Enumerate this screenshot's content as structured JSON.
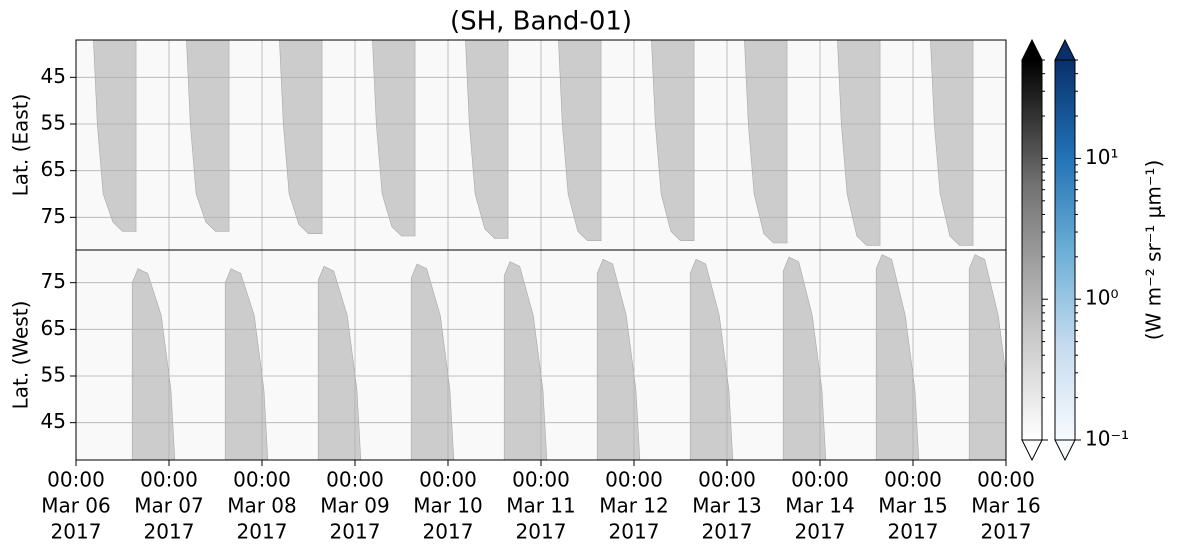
{
  "chart_data": {
    "type": "heatmap",
    "title": "(SH, Band-01)",
    "xlim": [
      0,
      240
    ],
    "xticks": [
      {
        "value": 0,
        "label": [
          "00:00",
          "Mar 06",
          "2017"
        ]
      },
      {
        "value": 24,
        "label": [
          "00:00",
          "Mar 07",
          "2017"
        ]
      },
      {
        "value": 48,
        "label": [
          "00:00",
          "Mar 08",
          "2017"
        ]
      },
      {
        "value": 72,
        "label": [
          "00:00",
          "Mar 09",
          "2017"
        ]
      },
      {
        "value": 96,
        "label": [
          "00:00",
          "Mar 10",
          "2017"
        ]
      },
      {
        "value": 120,
        "label": [
          "00:00",
          "Mar 11",
          "2017"
        ]
      },
      {
        "value": 144,
        "label": [
          "00:00",
          "Mar 12",
          "2017"
        ]
      },
      {
        "value": 168,
        "label": [
          "00:00",
          "Mar 13",
          "2017"
        ]
      },
      {
        "value": 192,
        "label": [
          "00:00",
          "Mar 14",
          "2017"
        ]
      },
      {
        "value": 216,
        "label": [
          "00:00",
          "Mar 15",
          "2017"
        ]
      },
      {
        "value": 240,
        "label": [
          "00:00",
          "Mar 16",
          "2017"
        ]
      }
    ],
    "grid": true,
    "panels": [
      {
        "ylabel": "Lat. (East)",
        "ylim": [
          82,
          37
        ],
        "yticks": [
          45,
          55,
          65,
          75
        ],
        "background": 0.12,
        "swaths": [
          {
            "value": 0.5,
            "x": [
              4.5,
              15.5,
              15.5,
              12,
              9.5,
              7,
              5.5
            ],
            "y": [
              37,
              37,
              78,
              78,
              76,
              70,
              55
            ]
          },
          {
            "value": 0.5,
            "x": [
              28.5,
              39.5,
              39.5,
              36,
              33.5,
              31,
              29.5
            ],
            "y": [
              37,
              37,
              78,
              78,
              76,
              70,
              55
            ]
          },
          {
            "value": 0.5,
            "x": [
              52.5,
              63.5,
              63.5,
              60,
              57.5,
              55,
              53.5
            ],
            "y": [
              37,
              37,
              78.5,
              78.5,
              76.5,
              70,
              55
            ]
          },
          {
            "value": 0.5,
            "x": [
              76.5,
              87.5,
              87.5,
              84,
              81.5,
              79,
              77.5
            ],
            "y": [
              37,
              37,
              79,
              79,
              77,
              70,
              55
            ]
          },
          {
            "value": 0.5,
            "x": [
              100.5,
              111.5,
              111.5,
              108,
              105.5,
              103,
              101.5
            ],
            "y": [
              37,
              37,
              79.5,
              79.5,
              77.5,
              70,
              55
            ]
          },
          {
            "value": 0.5,
            "x": [
              124.5,
              135.5,
              135.5,
              132,
              129.5,
              127,
              125.5
            ],
            "y": [
              37,
              37,
              80,
              80,
              78,
              70,
              55
            ]
          },
          {
            "value": 0.5,
            "x": [
              148.5,
              159.5,
              159.5,
              156,
              153.5,
              151,
              149.5
            ],
            "y": [
              37,
              37,
              80,
              80,
              78,
              70,
              55
            ]
          },
          {
            "value": 0.5,
            "x": [
              172.5,
              183.5,
              183.5,
              180,
              177.5,
              175,
              173.5
            ],
            "y": [
              37,
              37,
              80.5,
              80.5,
              78.5,
              70,
              55
            ]
          },
          {
            "value": 0.5,
            "x": [
              196.5,
              207.5,
              207.5,
              204,
              201.5,
              199,
              197.5
            ],
            "y": [
              37,
              37,
              81,
              81,
              79,
              70,
              55
            ]
          },
          {
            "value": 0.5,
            "x": [
              220.5,
              231.5,
              231.5,
              228,
              225.5,
              223,
              221.5
            ],
            "y": [
              37,
              37,
              81,
              81,
              79,
              70,
              55
            ]
          }
        ]
      },
      {
        "ylabel": "Lat. (West)",
        "ylim": [
          37,
          82
        ],
        "yticks": [
          45,
          55,
          65,
          75
        ],
        "background": 0.12,
        "swaths": [
          {
            "value": 0.5,
            "x": [
              14.5,
              14.5,
              16,
              18.5,
              22,
              24.5,
              25.5
            ],
            "y": [
              37,
              75,
              78,
              77,
              68,
              52,
              37
            ]
          },
          {
            "value": 0.5,
            "x": [
              38.5,
              38.5,
              40,
              42.5,
              46,
              48.5,
              49.5
            ],
            "y": [
              37,
              75,
              78,
              77,
              68,
              52,
              37
            ]
          },
          {
            "value": 0.5,
            "x": [
              62.5,
              62.5,
              64,
              66.5,
              70,
              72.5,
              73.5
            ],
            "y": [
              37,
              75.5,
              78.5,
              77.5,
              68,
              52,
              37
            ]
          },
          {
            "value": 0.5,
            "x": [
              86.5,
              86.5,
              88,
              90.5,
              94,
              96.5,
              97.5
            ],
            "y": [
              37,
              76,
              79,
              78,
              68,
              52,
              37
            ]
          },
          {
            "value": 0.5,
            "x": [
              110.5,
              110.5,
              112,
              114.5,
              118,
              120.5,
              121.5
            ],
            "y": [
              37,
              76.5,
              79.5,
              78.5,
              68,
              52,
              37
            ]
          },
          {
            "value": 0.5,
            "x": [
              134.5,
              134.5,
              136,
              138.5,
              142,
              144.5,
              145.5
            ],
            "y": [
              37,
              77,
              80,
              79,
              68,
              52,
              37
            ]
          },
          {
            "value": 0.5,
            "x": [
              158.5,
              158.5,
              160,
              162.5,
              166,
              168.5,
              169.5
            ],
            "y": [
              37,
              77,
              80,
              79,
              68,
              52,
              37
            ]
          },
          {
            "value": 0.5,
            "x": [
              182.5,
              182.5,
              184,
              186.5,
              190,
              192.5,
              193.5
            ],
            "y": [
              37,
              77.5,
              80.5,
              79.5,
              68,
              52,
              37
            ]
          },
          {
            "value": 0.5,
            "x": [
              206.5,
              206.5,
              208,
              210.5,
              214,
              216.5,
              217.5
            ],
            "y": [
              37,
              78,
              81,
              80,
              68,
              52,
              37
            ]
          },
          {
            "value": 0.5,
            "x": [
              230.5,
              230.5,
              232,
              234.5,
              238,
              240.5,
              241.5
            ],
            "y": [
              37,
              78,
              81,
              80,
              68,
              52,
              37
            ]
          }
        ]
      }
    ],
    "colorbar": {
      "scale": "log",
      "lim": [
        0.1,
        50
      ],
      "ticks": [
        {
          "value": 0.1,
          "label": "10⁻¹"
        },
        {
          "value": 1,
          "label": "10⁰"
        },
        {
          "value": 10,
          "label": "10¹"
        }
      ],
      "minor_ticks": true,
      "extend": "both",
      "label": "(W m⁻² sr⁻¹ μm⁻¹)",
      "cmaps": [
        [
          "#ffffff",
          "#bdbdbd",
          "#737373",
          "#000000"
        ],
        [
          "#f7fbff",
          "#c6dbef",
          "#6baed6",
          "#2171b5",
          "#08306b"
        ]
      ]
    }
  }
}
